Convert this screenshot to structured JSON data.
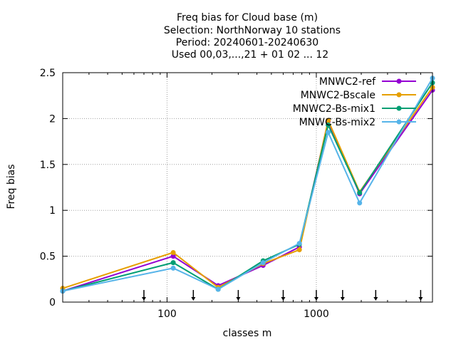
{
  "chart_data": {
    "type": "line",
    "title": [
      "Freq bias  for Cloud base (m)",
      "Selection: NorthNorway      10 stations",
      "Period: 20240601-20240630",
      "Used 00,03,...,21 + 01 02 ... 12"
    ],
    "xlabel": "classes m",
    "ylabel": "Freq bias",
    "x_scale": "log",
    "xlim": [
      20,
      6000
    ],
    "ylim": [
      0,
      2.5
    ],
    "x_ticks": [
      100,
      1000
    ],
    "x_tick_labels": [
      "100",
      "1000"
    ],
    "y_ticks": [
      0,
      0.5,
      1,
      1.5,
      2,
      2.5
    ],
    "y_tick_labels": [
      "0",
      "0.5",
      "1",
      "1.5",
      "2",
      "2.5"
    ],
    "grid": true,
    "legend_position": "top-right",
    "arrow_markers_x": [
      70,
      150,
      300,
      600,
      1000,
      1500,
      2500,
      5000
    ],
    "x": [
      20,
      110,
      220,
      440,
      770,
      1200,
      1950,
      6000
    ],
    "series": [
      {
        "name": "MNWC2-ref",
        "color": "#9400d3",
        "values": [
          0.12,
          0.5,
          0.18,
          0.4,
          0.6,
          1.97,
          1.18,
          2.31
        ]
      },
      {
        "name": "MNWC2-Bscale",
        "color": "#e69f00",
        "values": [
          0.15,
          0.54,
          0.16,
          0.42,
          0.57,
          1.98,
          1.2,
          2.34
        ]
      },
      {
        "name": "MNWC2-Bs-mix1",
        "color": "#009e73",
        "values": [
          0.12,
          0.43,
          0.14,
          0.45,
          0.63,
          1.93,
          1.19,
          2.39
        ]
      },
      {
        "name": "MNWC-Bs-mix2",
        "color": "#56b4e9",
        "values": [
          0.12,
          0.37,
          0.14,
          0.43,
          0.64,
          1.85,
          1.08,
          2.44
        ]
      }
    ]
  }
}
